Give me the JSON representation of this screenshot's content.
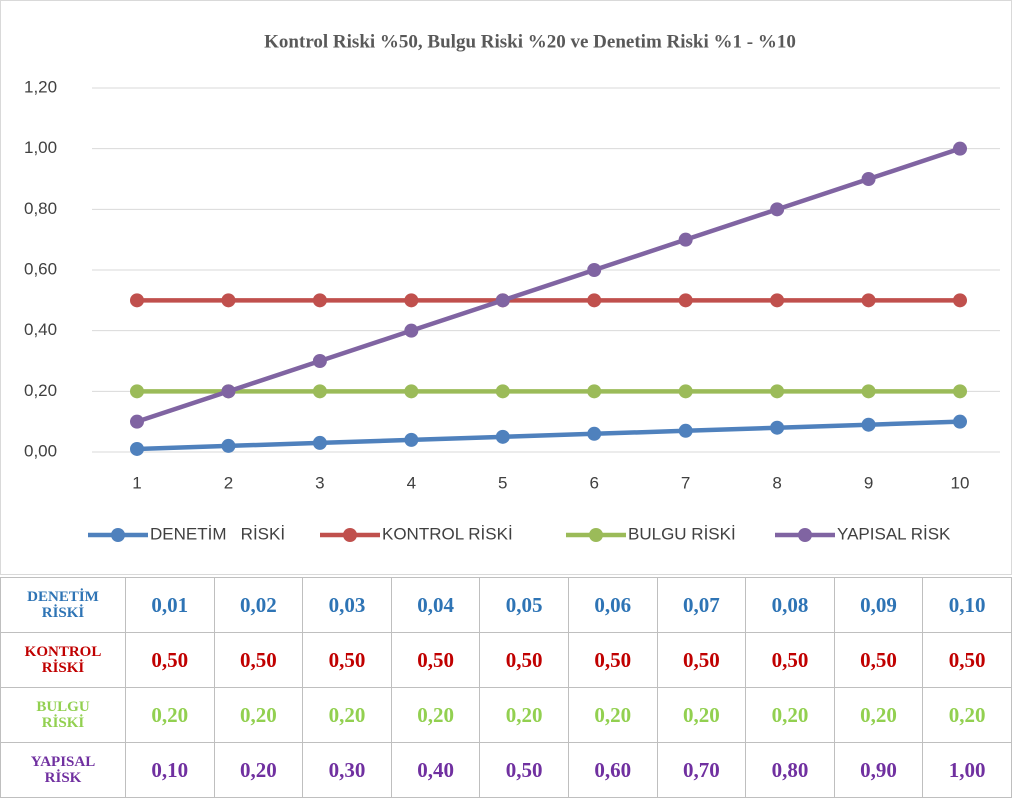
{
  "chart_data": {
    "type": "line",
    "title": "Kontrol Riski %50, Bulgu Riski %20 ve Denetim Riski %1 - %10",
    "categories": [
      1,
      2,
      3,
      4,
      5,
      6,
      7,
      8,
      9,
      10
    ],
    "series": [
      {
        "name": "DENETİM   RİSKİ",
        "color": "#4f81bd",
        "values": [
          0.01,
          0.02,
          0.03,
          0.04,
          0.05,
          0.06,
          0.07,
          0.08,
          0.09,
          0.1
        ],
        "value_labels": [
          "0,01",
          "0,02",
          "0,03",
          "0,04",
          "0,05",
          "0,06",
          "0,07",
          "0,08",
          "0,09",
          "0,10"
        ]
      },
      {
        "name": "KONTROL RİSKİ",
        "color": "#c0504d",
        "values": [
          0.5,
          0.5,
          0.5,
          0.5,
          0.5,
          0.5,
          0.5,
          0.5,
          0.5,
          0.5
        ],
        "value_labels": [
          "0,50",
          "0,50",
          "0,50",
          "0,50",
          "0,50",
          "0,50",
          "0,50",
          "0,50",
          "0,50",
          "0,50"
        ]
      },
      {
        "name": "BULGU RİSKİ",
        "color": "#9bbb59",
        "values": [
          0.2,
          0.2,
          0.2,
          0.2,
          0.2,
          0.2,
          0.2,
          0.2,
          0.2,
          0.2
        ],
        "value_labels": [
          "0,20",
          "0,20",
          "0,20",
          "0,20",
          "0,20",
          "0,20",
          "0,20",
          "0,20",
          "0,20",
          "0,20"
        ]
      },
      {
        "name": "YAPISAL RİSK",
        "color": "#8064a2",
        "values": [
          0.1,
          0.2,
          0.3,
          0.4,
          0.5,
          0.6,
          0.7,
          0.8,
          0.9,
          1.0
        ],
        "value_labels": [
          "0,10",
          "0,20",
          "0,30",
          "0,40",
          "0,50",
          "0,60",
          "0,70",
          "0,80",
          "0,90",
          "1,00"
        ]
      }
    ],
    "ylim": [
      0,
      1.2
    ],
    "yticks": [
      {
        "value": 0,
        "label": "0,00"
      },
      {
        "value": 0.2,
        "label": "0,20"
      },
      {
        "value": 0.4,
        "label": "0,40"
      },
      {
        "value": 0.6,
        "label": "0,60"
      },
      {
        "value": 0.8,
        "label": "0,80"
      },
      {
        "value": 1.0,
        "label": "1,00"
      },
      {
        "value": 1.2,
        "label": "1,20"
      }
    ],
    "grid": true,
    "legend": "bottom"
  },
  "table": {
    "row_labels": [
      "DENETİM RİSKİ",
      "KONTROL RİSKİ",
      "BULGU RİSKİ",
      "YAPISAL RİSK"
    ],
    "row_colors": [
      "#2e74b5",
      "#c00000",
      "#92d050",
      "#7030a0"
    ]
  }
}
